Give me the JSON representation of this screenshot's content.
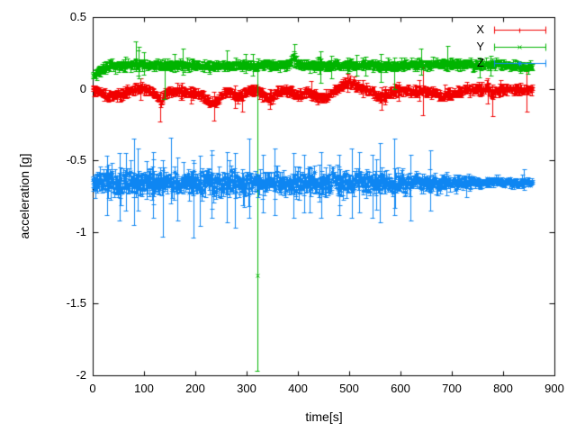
{
  "chart_data": {
    "type": "scatter",
    "title": "",
    "xlabel": "time[s]",
    "ylabel": "acceleration [g]",
    "xlim": [
      0,
      900
    ],
    "ylim": [
      -2,
      0.5
    ],
    "xtick_values": [
      0,
      100,
      200,
      300,
      400,
      500,
      600,
      700,
      800,
      900
    ],
    "xtick_labels": [
      "0",
      "100",
      "200",
      "300",
      "400",
      "500",
      "600",
      "700",
      "800",
      "900"
    ],
    "ytick_values": [
      0.5,
      0,
      -0.5,
      -1,
      -1.5,
      -2
    ],
    "ytick_labels": [
      "0.5",
      "0",
      "-0.5",
      "-1",
      "-1.5",
      "-2"
    ],
    "grid": false,
    "legend_position": "top-right-inside",
    "frame_color": "#000000",
    "text_color": "#000000",
    "style": "points-with-errorbars",
    "t_end": 858,
    "dt": 1.2,
    "series": [
      {
        "name": "X",
        "marker": "plus",
        "color": "#f10000",
        "seed": 101,
        "sigma": 0.01,
        "err_base": 0.014,
        "err_var": 0.012,
        "tail_p": 0.025,
        "tail_mult": 2.5,
        "mean": [
          [
            0,
            0.005
          ],
          [
            12,
            -0.02
          ],
          [
            30,
            -0.05
          ],
          [
            50,
            -0.045
          ],
          [
            68,
            -0.02
          ],
          [
            88,
            0.005
          ],
          [
            100,
            -0.005
          ],
          [
            115,
            -0.02
          ],
          [
            128,
            -0.07
          ],
          [
            133,
            -0.1
          ],
          [
            140,
            -0.03
          ],
          [
            155,
            -0.015
          ],
          [
            175,
            -0.025
          ],
          [
            195,
            -0.03
          ],
          [
            215,
            -0.05
          ],
          [
            230,
            -0.1
          ],
          [
            242,
            -0.08
          ],
          [
            255,
            -0.03
          ],
          [
            270,
            -0.025
          ],
          [
            283,
            -0.06
          ],
          [
            295,
            -0.035
          ],
          [
            310,
            0.0
          ],
          [
            325,
            -0.02
          ],
          [
            342,
            -0.07
          ],
          [
            355,
            -0.04
          ],
          [
            368,
            -0.012
          ],
          [
            385,
            -0.02
          ],
          [
            400,
            -0.055
          ],
          [
            410,
            -0.03
          ],
          [
            424,
            -0.018
          ],
          [
            438,
            -0.055
          ],
          [
            452,
            -0.06
          ],
          [
            465,
            -0.025
          ],
          [
            478,
            -0.005
          ],
          [
            490,
            0.04
          ],
          [
            503,
            0.045
          ],
          [
            515,
            0.015
          ],
          [
            530,
            -0.005
          ],
          [
            545,
            -0.02
          ],
          [
            558,
            -0.065
          ],
          [
            572,
            -0.04
          ],
          [
            588,
            -0.012
          ],
          [
            605,
            -0.01
          ],
          [
            625,
            -0.02
          ],
          [
            645,
            -0.015
          ],
          [
            663,
            -0.03
          ],
          [
            680,
            -0.045
          ],
          [
            698,
            -0.04
          ],
          [
            714,
            -0.02
          ],
          [
            730,
            -0.005
          ],
          [
            748,
            -0.002
          ],
          [
            760,
            -0.012
          ],
          [
            770,
            0.012
          ],
          [
            777,
            -0.04
          ],
          [
            786,
            -0.012
          ],
          [
            800,
            -0.002
          ],
          [
            818,
            -0.006
          ],
          [
            840,
            -0.01
          ],
          [
            858,
            -0.006
          ]
        ],
        "spikes": [
          [
            131,
            -0.23,
            -0.02
          ],
          [
            236,
            -0.22,
            -0.02
          ],
          [
            292,
            -0.16,
            0.0
          ],
          [
            345,
            -0.14,
            0.0
          ],
          [
            563,
            -0.15,
            0.01
          ],
          [
            770,
            -0.1,
            0.07
          ],
          [
            779,
            -0.19,
            0.03
          ]
        ]
      },
      {
        "name": "Y",
        "marker": "cross",
        "color": "#00b400",
        "seed": 202,
        "sigma": 0.009,
        "err_base": 0.014,
        "err_var": 0.011,
        "tail_p": 0.02,
        "tail_mult": 2.5,
        "mean": [
          [
            0,
            0.1
          ],
          [
            8,
            0.105
          ],
          [
            20,
            0.14
          ],
          [
            35,
            0.16
          ],
          [
            60,
            0.163
          ],
          [
            85,
            0.173
          ],
          [
            110,
            0.168
          ],
          [
            140,
            0.162
          ],
          [
            170,
            0.168
          ],
          [
            200,
            0.163
          ],
          [
            235,
            0.158
          ],
          [
            265,
            0.165
          ],
          [
            300,
            0.165
          ],
          [
            330,
            0.168
          ],
          [
            360,
            0.165
          ],
          [
            383,
            0.17
          ],
          [
            391,
            0.225
          ],
          [
            399,
            0.178
          ],
          [
            420,
            0.168
          ],
          [
            455,
            0.163
          ],
          [
            490,
            0.165
          ],
          [
            525,
            0.168
          ],
          [
            560,
            0.16
          ],
          [
            595,
            0.163
          ],
          [
            630,
            0.168
          ],
          [
            665,
            0.17
          ],
          [
            695,
            0.175
          ],
          [
            725,
            0.17
          ],
          [
            755,
            0.165
          ],
          [
            782,
            0.172
          ],
          [
            800,
            0.173
          ],
          [
            815,
            0.158
          ],
          [
            838,
            0.153
          ],
          [
            858,
            0.154
          ]
        ],
        "spikes": [
          [
            84,
            0.12,
            0.33
          ],
          [
            140,
            -0.07,
            0.21
          ],
          [
            176,
            0.1,
            0.28
          ],
          [
            262,
            0.12,
            0.27
          ],
          [
            298,
            0.11,
            0.24
          ],
          [
            393,
            0.15,
            0.31
          ],
          [
            562,
            0.05,
            0.24
          ],
          [
            588,
            0.0,
            0.22
          ],
          [
            640,
            0.1,
            0.28
          ],
          [
            692,
            0.12,
            0.3
          ],
          [
            754,
            0.08,
            0.22
          ],
          [
            776,
            0.09,
            0.23
          ]
        ],
        "outlier": {
          "t": 321,
          "v": -1.3,
          "lo": -1.97,
          "hi": 0.12
        }
      },
      {
        "name": "Z",
        "marker": "star",
        "color": "#0e86f2",
        "seed": 303,
        "sigma_env": [
          [
            0,
            0.026
          ],
          [
            40,
            0.032
          ],
          [
            120,
            0.034
          ],
          [
            250,
            0.034
          ],
          [
            400,
            0.034
          ],
          [
            520,
            0.032
          ],
          [
            600,
            0.028
          ],
          [
            660,
            0.022
          ],
          [
            720,
            0.016
          ],
          [
            780,
            0.013
          ],
          [
            858,
            0.012
          ]
        ],
        "sigma_ref": 0.034,
        "err_base": 0.02,
        "err_var": 0.028,
        "tail_p": 0.04,
        "tail_mult": 2.0,
        "mean": [
          [
            0,
            -0.66
          ],
          [
            40,
            -0.653
          ],
          [
            80,
            -0.658
          ],
          [
            120,
            -0.655
          ],
          [
            160,
            -0.66
          ],
          [
            200,
            -0.652
          ],
          [
            240,
            -0.657
          ],
          [
            280,
            -0.66
          ],
          [
            320,
            -0.652
          ],
          [
            360,
            -0.658
          ],
          [
            400,
            -0.652
          ],
          [
            440,
            -0.657
          ],
          [
            480,
            -0.655
          ],
          [
            520,
            -0.651
          ],
          [
            560,
            -0.658
          ],
          [
            600,
            -0.655
          ],
          [
            640,
            -0.651
          ],
          [
            680,
            -0.654
          ],
          [
            720,
            -0.653
          ],
          [
            760,
            -0.65
          ],
          [
            800,
            -0.653
          ],
          [
            830,
            -0.655
          ],
          [
            858,
            -0.654
          ]
        ],
        "spikes": [
          [
            28,
            -0.88,
            -0.47
          ],
          [
            52,
            -0.92,
            -0.45
          ],
          [
            80,
            -0.95,
            -0.35
          ],
          [
            88,
            -0.85,
            -0.42
          ],
          [
            118,
            -0.9,
            -0.44
          ],
          [
            136,
            -1.03,
            -0.5
          ],
          [
            152,
            -0.8,
            -0.34
          ],
          [
            165,
            -0.92,
            -0.48
          ],
          [
            196,
            -1.04,
            -0.5
          ],
          [
            232,
            -0.9,
            -0.46
          ],
          [
            262,
            -0.93,
            -0.44
          ],
          [
            278,
            -0.97,
            -0.45
          ],
          [
            305,
            -0.9,
            -0.35
          ],
          [
            332,
            -0.86,
            -0.46
          ],
          [
            355,
            -0.88,
            -0.42
          ],
          [
            392,
            -0.9,
            -0.45
          ],
          [
            412,
            -0.86,
            -0.46
          ],
          [
            445,
            -0.9,
            -0.44
          ],
          [
            480,
            -0.88,
            -0.46
          ],
          [
            505,
            -0.9,
            -0.42
          ],
          [
            520,
            -0.86,
            -0.44
          ],
          [
            545,
            -0.9,
            -0.46
          ],
          [
            560,
            -0.93,
            -0.38
          ],
          [
            588,
            -0.88,
            -0.35
          ],
          [
            620,
            -0.92,
            -0.46
          ],
          [
            658,
            -0.85,
            -0.43
          ]
        ]
      }
    ]
  }
}
